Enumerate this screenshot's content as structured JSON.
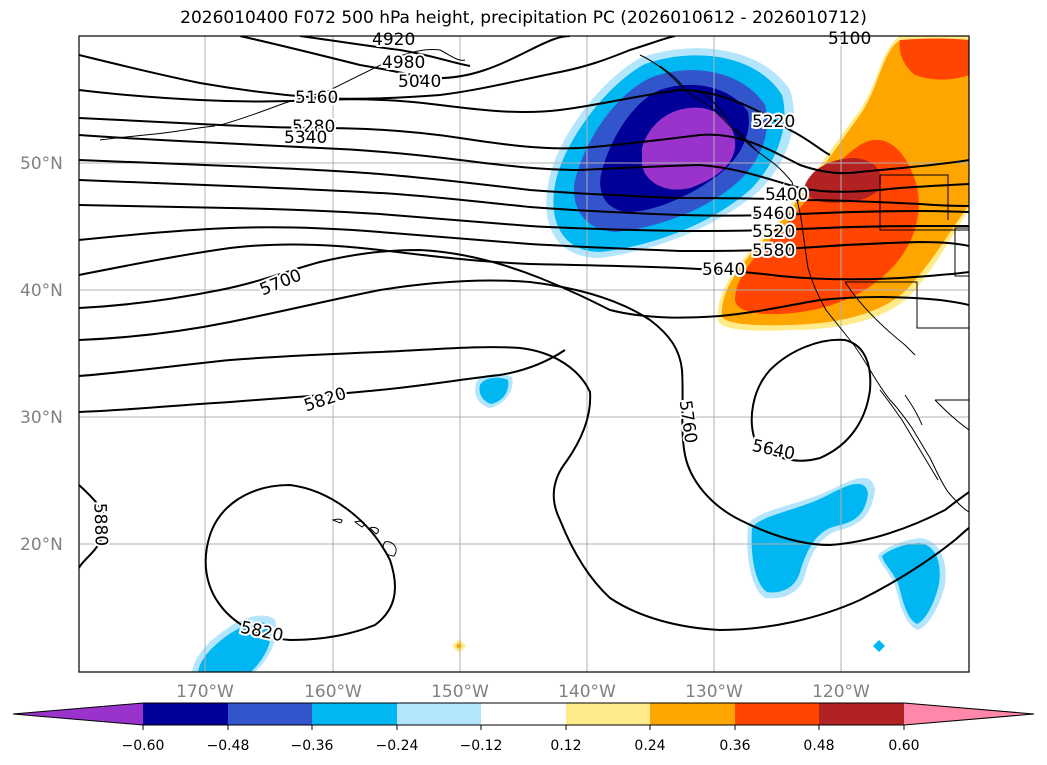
{
  "title": "2026010400 F072 500 hPa height, precipitation PC (2026010612 - 2026010712)",
  "colors": {
    "neg_060": "#9933cc",
    "neg_048": "#000099",
    "neg_036": "#3355cc",
    "neg_024": "#00b7f2",
    "neg_012": "#b3e5fc",
    "pos_012": "#ffeb8a",
    "pos_024": "#ffa500",
    "pos_036": "#ff4500",
    "pos_048": "#b22222",
    "pos_060": "#ff88aa",
    "grid": "#b0b0b0",
    "axis_label": "#808080"
  },
  "map_extent": {
    "lon_min": -180,
    "lon_max": -110,
    "lat_min": 10,
    "lat_max": 60
  },
  "lat_labels": [
    "50°N",
    "40°N",
    "30°N",
    "20°N"
  ],
  "lon_labels": [
    "170°W",
    "160°W",
    "150°W",
    "140°W",
    "130°W",
    "120°W"
  ],
  "contour_labels": {
    "c4920": "4920",
    "c4980": "4980",
    "c5040": "5040",
    "c5100": "5100",
    "c5160": "5160",
    "c5220": "5220",
    "c5280": "5280",
    "c5340": "5340",
    "c5400": "5400",
    "c5460": "5460",
    "c5520": "5520",
    "c5580": "5580",
    "c5640a": "5640",
    "c5640b": "5640",
    "c5700": "5700",
    "c5760": "5760",
    "c5820a": "5820",
    "c5820b": "5820",
    "c5880": "5880"
  },
  "colorbar": {
    "ticks": [
      "−0.60",
      "−0.48",
      "−0.36",
      "−0.24",
      "−0.12",
      "0.12",
      "0.24",
      "0.36",
      "0.48",
      "0.60"
    ]
  }
}
